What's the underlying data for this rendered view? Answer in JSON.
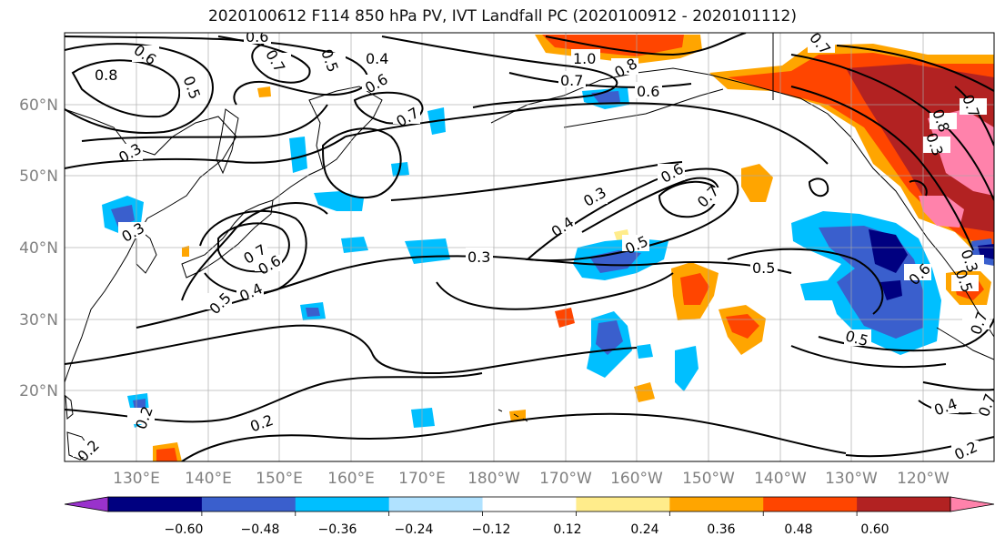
{
  "title": "2020100612 F114 850 hPa PV, IVT Landfall PC (2020100912 - 2020101112)",
  "lat_labels": [
    "60°N",
    "50°N",
    "40°N",
    "30°N",
    "20°N"
  ],
  "lon_labels": [
    "130°E",
    "140°E",
    "150°E",
    "160°E",
    "170°E",
    "180°W",
    "170°W",
    "160°W",
    "150°W",
    "140°W",
    "130°W",
    "120°W"
  ],
  "colorbar": {
    "colors": [
      "#9932cc",
      "#000080",
      "#3a5fcd",
      "#00bfff",
      "#b0e2ff",
      "#ffffff",
      "#ffec8b",
      "#ffa500",
      "#ff4500",
      "#b22222",
      "#ff82ab"
    ],
    "tick_labels": [
      "−0.60",
      "−0.48",
      "−0.36",
      "−0.24",
      "−0.12",
      "0.12",
      "0.24",
      "0.36",
      "0.48",
      "0.60"
    ]
  },
  "contour_labels": [
    "0.6",
    "0.8",
    "0.6",
    "0.5",
    "0.7",
    "0.5",
    "0.4",
    "0.6",
    "0.7",
    "1.0",
    "0.7",
    "0.8",
    "0.6",
    "0.7",
    "0.7",
    "0.8",
    "0.3",
    "0.3",
    "0.3",
    "0.6",
    "0.7",
    "0.3",
    "0.4",
    "0.5",
    "0.3",
    "0.7",
    "0.6",
    "0.4",
    "0.5",
    "0.5",
    "0.5",
    "0.6",
    "0.3",
    "0.5",
    "0.7",
    "0.2",
    "0.2",
    "0.4",
    "0.7",
    "0.2",
    "0.2"
  ]
}
